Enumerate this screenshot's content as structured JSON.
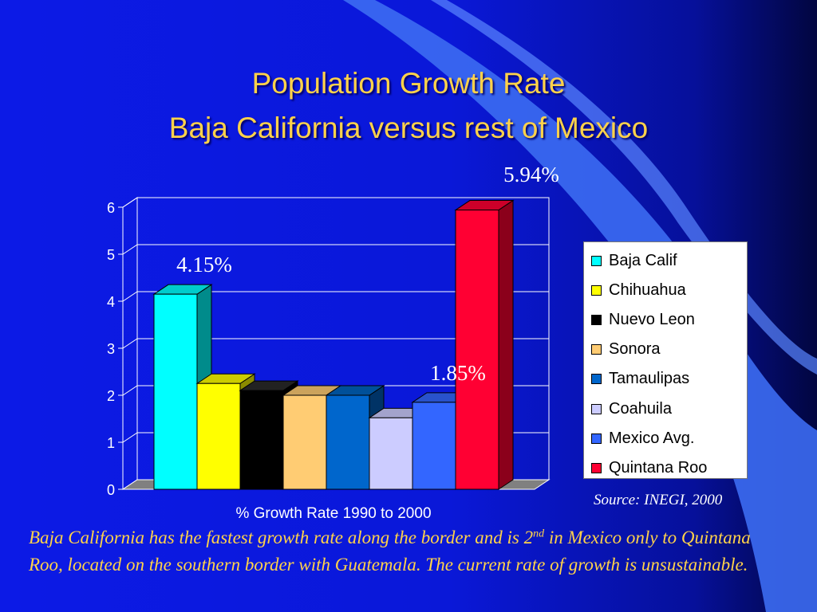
{
  "title": {
    "line1": "Population Growth Rate",
    "line2": "Baja California versus rest of Mexico"
  },
  "chart_data": {
    "type": "bar",
    "xlabel": "% Growth Rate 1990 to 2000",
    "ylabel": "",
    "ylim": [
      0,
      6
    ],
    "yticks": [
      "0",
      "1",
      "2",
      "3",
      "4",
      "5",
      "6"
    ],
    "grid": true,
    "legend_placement": "right",
    "series": [
      {
        "name": "Baja Calif",
        "value": 4.15,
        "color": "#00ffff",
        "side_color": "#008b8b",
        "top_color": "#00cccc"
      },
      {
        "name": "Chihuahua",
        "value": 2.25,
        "color": "#ffff00",
        "side_color": "#8b8b00",
        "top_color": "#cccc00"
      },
      {
        "name": "Nuevo Leon",
        "value": 2.1,
        "color": "#000000",
        "side_color": "#000000",
        "top_color": "#222222"
      },
      {
        "name": "Sonora",
        "value": 2.0,
        "color": "#ffcc73",
        "side_color": "#8b6f3e",
        "top_color": "#cca35c"
      },
      {
        "name": "Tamaulipas",
        "value": 2.0,
        "color": "#0066cc",
        "side_color": "#003366",
        "top_color": "#005099"
      },
      {
        "name": "Coahuila",
        "value": 1.52,
        "color": "#ccccff",
        "side_color": "#7070a0",
        "top_color": "#a3a3cc"
      },
      {
        "name": "Mexico Avg.",
        "value": 1.85,
        "color": "#3366ff",
        "side_color": "#1a3388",
        "top_color": "#2952cc"
      },
      {
        "name": "Quintana Roo",
        "value": 5.94,
        "color": "#ff0033",
        "side_color": "#8b001b",
        "top_color": "#cc0029"
      }
    ],
    "annotations": [
      "4.15%",
      "1.85%",
      "5.94%"
    ]
  },
  "source": "Source: INEGI, 2000",
  "note": {
    "part1": "Baja California has the fastest growth rate along the border and is 2",
    "sup": "nd",
    "part2": " in Mexico only to Quintana Roo, located on the southern border with Guatemala.   The current rate of growth is unsustainable."
  }
}
